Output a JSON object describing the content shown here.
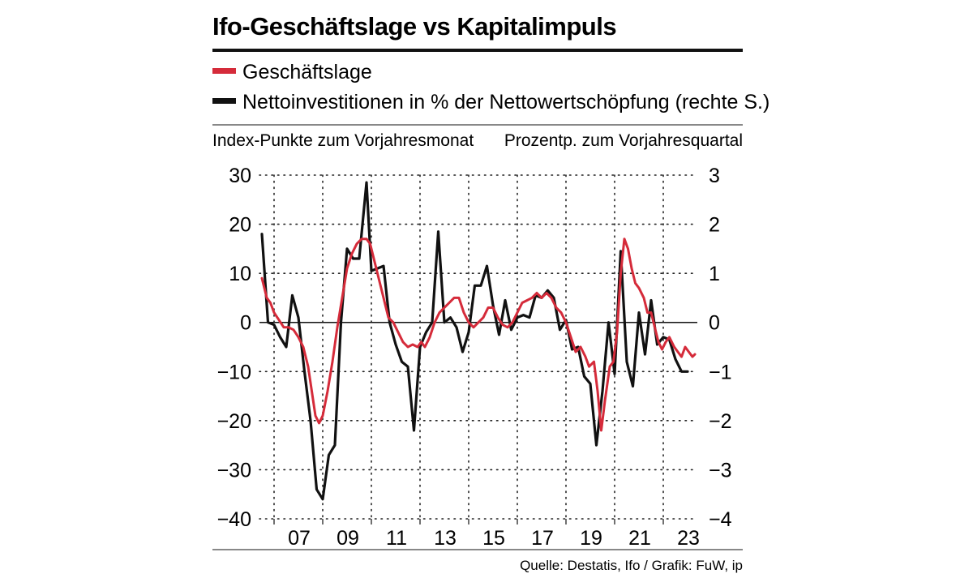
{
  "chart_data": {
    "type": "line",
    "title": "Ifo-Geschäftslage vs Kapitalimpuls",
    "left_axis_label": "Index-Punkte zum Vorjahresmonat",
    "right_axis_label": "Prozentp. zum Vorjahresquartal",
    "source": "Quelle: Destatis, Ifo / Grafik: FuW, ip",
    "x_ticks": [
      {
        "label": "07",
        "year": 2007
      },
      {
        "label": "09",
        "year": 2009
      },
      {
        "label": "11",
        "year": 2011
      },
      {
        "label": "13",
        "year": 2013
      },
      {
        "label": "15",
        "year": 2015
      },
      {
        "label": "17",
        "year": 2017
      },
      {
        "label": "19",
        "year": 2019
      },
      {
        "label": "21",
        "year": 2021
      },
      {
        "label": "23",
        "year": 2023
      }
    ],
    "xlim": [
      2006.4,
      2024.4
    ],
    "left_axis": {
      "ylim": [
        -40,
        30
      ],
      "ticks": [
        30,
        20,
        10,
        0,
        -10,
        -20,
        -30,
        -40
      ],
      "tick_labels": [
        "30",
        "20",
        "10",
        "0",
        "−10",
        "−20",
        "−30",
        "−40"
      ]
    },
    "right_axis": {
      "ylim": [
        -4,
        3
      ],
      "ticks": [
        3,
        2,
        1,
        0,
        -1,
        -2,
        -3,
        -4
      ],
      "tick_labels": [
        "3",
        "2",
        "1",
        "0",
        "−1",
        "−2",
        "−3",
        "−4"
      ]
    },
    "series": [
      {
        "name": "Geschäftslage",
        "axis": "left",
        "color": "#d52b3a",
        "points": [
          [
            2006.5,
            9
          ],
          [
            2006.6,
            7
          ],
          [
            2006.7,
            5
          ],
          [
            2006.85,
            4
          ],
          [
            2007.0,
            2
          ],
          [
            2007.2,
            0.5
          ],
          [
            2007.4,
            -1
          ],
          [
            2007.6,
            -1
          ],
          [
            2007.8,
            -1.5
          ],
          [
            2008.0,
            -3
          ],
          [
            2008.2,
            -5
          ],
          [
            2008.4,
            -9
          ],
          [
            2008.55,
            -14
          ],
          [
            2008.7,
            -19
          ],
          [
            2008.85,
            -20.5
          ],
          [
            2009.0,
            -19
          ],
          [
            2009.2,
            -14
          ],
          [
            2009.4,
            -8
          ],
          [
            2009.6,
            -1
          ],
          [
            2009.8,
            5
          ],
          [
            2010.0,
            11
          ],
          [
            2010.2,
            14
          ],
          [
            2010.4,
            16
          ],
          [
            2010.6,
            17
          ],
          [
            2010.8,
            17
          ],
          [
            2010.95,
            16
          ],
          [
            2011.1,
            13
          ],
          [
            2011.3,
            9
          ],
          [
            2011.5,
            5
          ],
          [
            2011.7,
            1
          ],
          [
            2011.9,
            0
          ],
          [
            2012.1,
            -2
          ],
          [
            2012.3,
            -4
          ],
          [
            2012.5,
            -5
          ],
          [
            2012.7,
            -4.5
          ],
          [
            2012.9,
            -5
          ],
          [
            2013.05,
            -4
          ],
          [
            2013.2,
            -5
          ],
          [
            2013.4,
            -3
          ],
          [
            2013.6,
            0
          ],
          [
            2013.8,
            2
          ],
          [
            2014.0,
            3
          ],
          [
            2014.2,
            4
          ],
          [
            2014.4,
            5
          ],
          [
            2014.6,
            5
          ],
          [
            2014.8,
            2
          ],
          [
            2015.0,
            0
          ],
          [
            2015.2,
            -1
          ],
          [
            2015.4,
            0
          ],
          [
            2015.6,
            1
          ],
          [
            2015.8,
            3
          ],
          [
            2016.0,
            3
          ],
          [
            2016.2,
            1
          ],
          [
            2016.4,
            -0.5
          ],
          [
            2016.6,
            -1
          ],
          [
            2016.8,
            0
          ],
          [
            2017.0,
            2
          ],
          [
            2017.2,
            4
          ],
          [
            2017.4,
            4.5
          ],
          [
            2017.6,
            5
          ],
          [
            2017.8,
            6
          ],
          [
            2018.0,
            5
          ],
          [
            2018.2,
            6
          ],
          [
            2018.4,
            5
          ],
          [
            2018.6,
            3
          ],
          [
            2018.8,
            2
          ],
          [
            2019.0,
            0
          ],
          [
            2019.2,
            -3
          ],
          [
            2019.4,
            -6
          ],
          [
            2019.6,
            -5
          ],
          [
            2019.8,
            -7
          ],
          [
            2019.95,
            -9
          ],
          [
            2020.15,
            -8
          ],
          [
            2020.3,
            -14
          ],
          [
            2020.45,
            -22
          ],
          [
            2020.6,
            -16
          ],
          [
            2020.8,
            -9
          ],
          [
            2020.95,
            -8
          ],
          [
            2021.1,
            -2
          ],
          [
            2021.25,
            10
          ],
          [
            2021.4,
            17
          ],
          [
            2021.55,
            15
          ],
          [
            2021.7,
            11
          ],
          [
            2021.85,
            8
          ],
          [
            2022.0,
            7
          ],
          [
            2022.2,
            5
          ],
          [
            2022.35,
            2
          ],
          [
            2022.5,
            2
          ],
          [
            2022.65,
            -1
          ],
          [
            2022.8,
            -4
          ],
          [
            2022.95,
            -5.5
          ],
          [
            2023.1,
            -4
          ],
          [
            2023.25,
            -3
          ],
          [
            2023.45,
            -5
          ],
          [
            2023.6,
            -6
          ],
          [
            2023.75,
            -7
          ],
          [
            2023.9,
            -5
          ],
          [
            2024.05,
            -6
          ],
          [
            2024.2,
            -7
          ],
          [
            2024.3,
            -6.5
          ]
        ]
      },
      {
        "name": "Nettoinvestitionen in % der Nettowertschöpfung (rechte S.)",
        "axis": "right",
        "color": "#111111",
        "points": [
          [
            2006.5,
            1.8
          ],
          [
            2006.75,
            0.0
          ],
          [
            2007.0,
            -0.05
          ],
          [
            2007.25,
            -0.3
          ],
          [
            2007.5,
            -0.5
          ],
          [
            2007.75,
            0.55
          ],
          [
            2008.0,
            0.1
          ],
          [
            2008.25,
            -1.0
          ],
          [
            2008.5,
            -2.0
          ],
          [
            2008.75,
            -3.4
          ],
          [
            2009.0,
            -3.6
          ],
          [
            2009.25,
            -2.7
          ],
          [
            2009.5,
            -2.5
          ],
          [
            2009.75,
            0.0
          ],
          [
            2010.0,
            1.5
          ],
          [
            2010.25,
            1.3
          ],
          [
            2010.5,
            1.3
          ],
          [
            2010.8,
            2.85
          ],
          [
            2011.0,
            1.05
          ],
          [
            2011.25,
            1.1
          ],
          [
            2011.5,
            1.15
          ],
          [
            2011.75,
            0.0
          ],
          [
            2012.0,
            -0.45
          ],
          [
            2012.25,
            -0.8
          ],
          [
            2012.5,
            -0.9
          ],
          [
            2012.75,
            -2.2
          ],
          [
            2013.0,
            -0.5
          ],
          [
            2013.25,
            -0.2
          ],
          [
            2013.5,
            0.0
          ],
          [
            2013.75,
            1.85
          ],
          [
            2014.0,
            0.0
          ],
          [
            2014.25,
            0.1
          ],
          [
            2014.5,
            -0.1
          ],
          [
            2014.75,
            -0.6
          ],
          [
            2015.0,
            -0.2
          ],
          [
            2015.25,
            0.75
          ],
          [
            2015.5,
            0.75
          ],
          [
            2015.75,
            1.15
          ],
          [
            2016.0,
            0.35
          ],
          [
            2016.25,
            -0.25
          ],
          [
            2016.5,
            0.45
          ],
          [
            2016.75,
            -0.15
          ],
          [
            2017.0,
            0.1
          ],
          [
            2017.25,
            0.15
          ],
          [
            2017.5,
            0.1
          ],
          [
            2017.75,
            0.55
          ],
          [
            2018.0,
            0.5
          ],
          [
            2018.25,
            0.65
          ],
          [
            2018.5,
            0.5
          ],
          [
            2018.75,
            -0.15
          ],
          [
            2019.0,
            0.05
          ],
          [
            2019.25,
            -0.55
          ],
          [
            2019.5,
            -0.5
          ],
          [
            2019.75,
            -1.1
          ],
          [
            2020.0,
            -1.25
          ],
          [
            2020.25,
            -2.5
          ],
          [
            2020.5,
            -1.4
          ],
          [
            2020.75,
            0.0
          ],
          [
            2021.0,
            -1.05
          ],
          [
            2021.25,
            1.45
          ],
          [
            2021.5,
            -0.8
          ],
          [
            2021.75,
            -1.3
          ],
          [
            2022.0,
            0.2
          ],
          [
            2022.25,
            -0.65
          ],
          [
            2022.5,
            0.45
          ],
          [
            2022.75,
            -0.45
          ],
          [
            2023.0,
            -0.3
          ],
          [
            2023.25,
            -0.35
          ],
          [
            2023.5,
            -0.75
          ],
          [
            2023.75,
            -1.0
          ],
          [
            2024.0,
            -1.0
          ]
        ]
      }
    ],
    "grid": true,
    "legend_position": "top-left"
  }
}
